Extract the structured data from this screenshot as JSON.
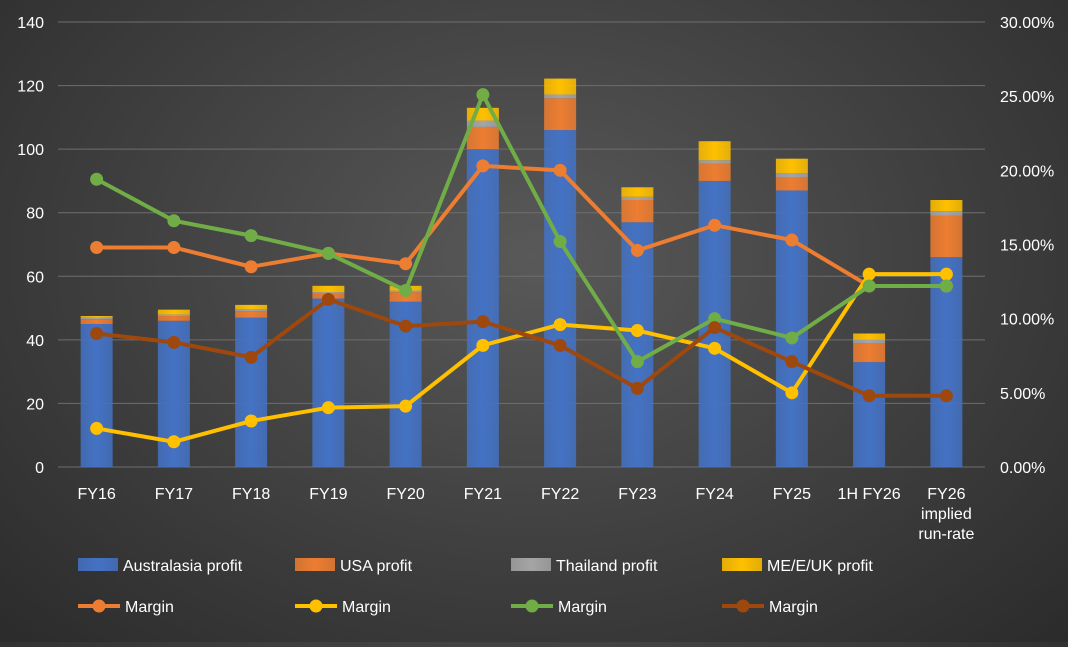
{
  "chart_data": {
    "type": "bar",
    "categories": [
      "FY16",
      "FY17",
      "FY18",
      "FY19",
      "FY20",
      "FY21",
      "FY22",
      "FY23",
      "FY24",
      "FY25",
      "1H FY26",
      "FY26 implied run-rate"
    ],
    "category_lines": [
      [
        "FY16"
      ],
      [
        "FY17"
      ],
      [
        "FY18"
      ],
      [
        "FY19"
      ],
      [
        "FY20"
      ],
      [
        "FY21"
      ],
      [
        "FY22"
      ],
      [
        "FY23"
      ],
      [
        "FY24"
      ],
      [
        "FY25"
      ],
      [
        "1H FY26"
      ],
      [
        "FY26",
        "implied",
        "run-rate"
      ]
    ],
    "stacked": true,
    "bar_series": [
      {
        "name": "Australasia profit",
        "color": "#4472c4",
        "values": [
          45,
          46,
          47,
          53,
          52,
          100,
          106,
          77,
          90,
          87,
          33,
          66
        ]
      },
      {
        "name": "USA profit",
        "color": "#ed7d31",
        "values": [
          1.5,
          1.5,
          2,
          1.5,
          3,
          7,
          10,
          7,
          5.5,
          4,
          6,
          13
        ]
      },
      {
        "name": "Thailand profit",
        "color": "#a5a5a5",
        "values": [
          0.5,
          0.5,
          0.7,
          0.5,
          0.5,
          2,
          1.2,
          1,
          1,
          1.5,
          1,
          1.5
        ]
      },
      {
        "name": "ME/E/UK profit",
        "color": "#ffc000",
        "values": [
          0.5,
          1.5,
          1.3,
          2,
          1.5,
          4,
          5,
          3,
          6,
          4.5,
          2,
          3.5
        ]
      }
    ],
    "line_series": [
      {
        "name": "Margin",
        "color": "#ed7d31",
        "values": [
          14.8,
          14.8,
          13.5,
          14.4,
          13.7,
          20.3,
          20.0,
          14.6,
          16.3,
          15.3,
          12.2,
          12.2
        ]
      },
      {
        "name": "Margin",
        "color": "#ffc000",
        "values": [
          2.6,
          1.7,
          3.1,
          4.0,
          4.1,
          8.2,
          9.6,
          9.2,
          8.0,
          5.0,
          13.0,
          13.0
        ]
      },
      {
        "name": "Margin",
        "color": "#70ad47",
        "values": [
          19.4,
          16.6,
          15.6,
          14.4,
          11.9,
          25.1,
          15.2,
          7.1,
          10.0,
          8.7,
          12.2,
          12.2
        ]
      },
      {
        "name": "Margin",
        "color": "#9e480e",
        "values": [
          9.0,
          8.4,
          7.4,
          11.3,
          9.5,
          9.8,
          8.2,
          5.3,
          9.4,
          7.1,
          4.8,
          4.8
        ]
      }
    ],
    "y_left": {
      "min": 0,
      "max": 140,
      "ticks": [
        0,
        20,
        40,
        60,
        80,
        100,
        120,
        140
      ]
    },
    "y_right": {
      "min": 0,
      "max": 30,
      "ticks": [
        "0.00%",
        "5.00%",
        "10.00%",
        "15.00%",
        "20.00%",
        "25.00%",
        "30.00%"
      ]
    },
    "grid": true,
    "legend_position": "bottom"
  }
}
